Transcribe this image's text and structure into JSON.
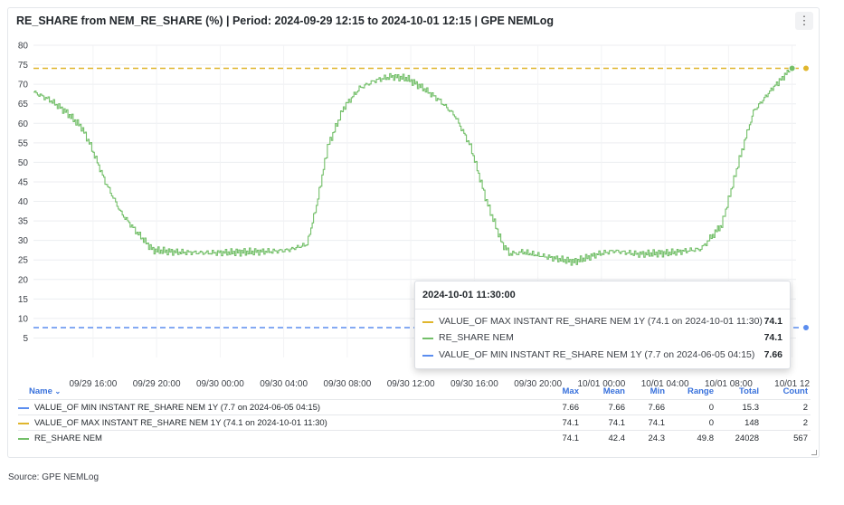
{
  "panel": {
    "title": "RE_SHARE from NEM_RE_SHARE (%) | Period: 2024-09-29 12:15 to 2024-10-01 12:15 | GPE NEMLog",
    "menu_icon": "more-vertical-icon"
  },
  "chart_data": {
    "type": "line",
    "ylim": [
      0,
      80
    ],
    "yticks": [
      "5",
      "10",
      "15",
      "20",
      "25",
      "30",
      "35",
      "40",
      "45",
      "50",
      "55",
      "60",
      "65",
      "70",
      "75",
      "80"
    ],
    "x_domain_hours": [
      0,
      48
    ],
    "xticks": [
      {
        "label": "09/29 16:00",
        "hour": 3.75
      },
      {
        "label": "09/29 20:00",
        "hour": 7.75
      },
      {
        "label": "09/30 00:00",
        "hour": 11.75
      },
      {
        "label": "09/30 04:00",
        "hour": 15.75
      },
      {
        "label": "09/30 08:00",
        "hour": 19.75
      },
      {
        "label": "09/30 12:00",
        "hour": 23.75
      },
      {
        "label": "09/30 16:00",
        "hour": 27.75
      },
      {
        "label": "09/30 20:00",
        "hour": 31.75
      },
      {
        "label": "10/01 00:00",
        "hour": 35.75
      },
      {
        "label": "10/01 04:00",
        "hour": 39.75
      },
      {
        "label": "10/01 08:00",
        "hour": 43.75
      },
      {
        "label": "10/01 12",
        "hour": 47.75
      }
    ],
    "series": [
      {
        "name": "VALUE_OF MIN INSTANT RE_SHARE NEM 1Y (7.7 on 2024-06-05 04:15)",
        "color": "#5b8def",
        "style": "dashed",
        "constant": 7.66
      },
      {
        "name": "VALUE_OF MAX INSTANT RE_SHARE NEM 1Y (74.1 on 2024-10-01 11:30)",
        "color": "#e0b62d",
        "style": "dashed",
        "constant": 74.1
      },
      {
        "name": "RE_SHARE NEM",
        "color": "#73bf69",
        "style": "solid",
        "x": [
          0,
          1,
          2,
          3,
          3.5,
          4.5,
          5.5,
          6.5,
          7.5,
          9,
          11,
          13,
          15,
          16,
          17.2,
          17.8,
          18.5,
          19.5,
          20.5,
          21.5,
          22.5,
          23.5,
          24.5,
          25.5,
          26.5,
          27.5,
          28.5,
          29.5,
          30,
          30.8,
          32,
          34,
          35.5,
          36.5,
          38,
          40,
          42,
          43.3,
          44.5,
          45.3,
          46.5,
          47.2,
          47.75
        ],
        "values": [
          68,
          66,
          63,
          59,
          55,
          45,
          37,
          32,
          27.5,
          27,
          26.8,
          27,
          27.2,
          27.5,
          29,
          39,
          54,
          64,
          69,
          71,
          72,
          71.5,
          69,
          66,
          62,
          54,
          40,
          29,
          26.5,
          27,
          26,
          24.5,
          26.5,
          27.3,
          26.5,
          26.8,
          27.8,
          34,
          52,
          63,
          69,
          72,
          74.1
        ]
      }
    ]
  },
  "tooltip": {
    "time": "2024-10-01 11:30:00",
    "rows": [
      {
        "name": "VALUE_OF MAX INSTANT RE_SHARE NEM 1Y (74.1 on 2024-10-01 11:30)",
        "value": "74.1",
        "color": "#e0b62d",
        "style": "dashed"
      },
      {
        "name": "RE_SHARE NEM",
        "value": "74.1",
        "color": "#73bf69",
        "style": "solid"
      },
      {
        "name": "VALUE_OF MIN INSTANT RE_SHARE NEM 1Y (7.7 on 2024-06-05 04:15)",
        "value": "7.66",
        "color": "#5b8def",
        "style": "dashed"
      }
    ]
  },
  "legend_table": {
    "headers": {
      "name": "Name",
      "name_sort_icon": "chevron-down-icon",
      "max": "Max",
      "mean": "Mean",
      "min": "Min",
      "range": "Range",
      "total": "Total",
      "count": "Count"
    },
    "rows": [
      {
        "name": "VALUE_OF MIN INSTANT RE_SHARE NEM 1Y (7.7 on 2024-06-05 04:15)",
        "color": "#5b8def",
        "style": "dashed",
        "max": "7.66",
        "mean": "7.66",
        "min": "7.66",
        "range": "0",
        "total": "15.3",
        "count": "2"
      },
      {
        "name": "VALUE_OF MAX INSTANT RE_SHARE NEM 1Y (74.1 on 2024-10-01 11:30)",
        "color": "#e0b62d",
        "style": "dashed",
        "max": "74.1",
        "mean": "74.1",
        "min": "74.1",
        "range": "0",
        "total": "148",
        "count": "2"
      },
      {
        "name": "RE_SHARE NEM",
        "color": "#73bf69",
        "style": "solid",
        "max": "74.1",
        "mean": "42.4",
        "min": "24.3",
        "range": "49.8",
        "total": "24028",
        "count": "567"
      }
    ]
  },
  "source": "Source: GPE NEMLog"
}
